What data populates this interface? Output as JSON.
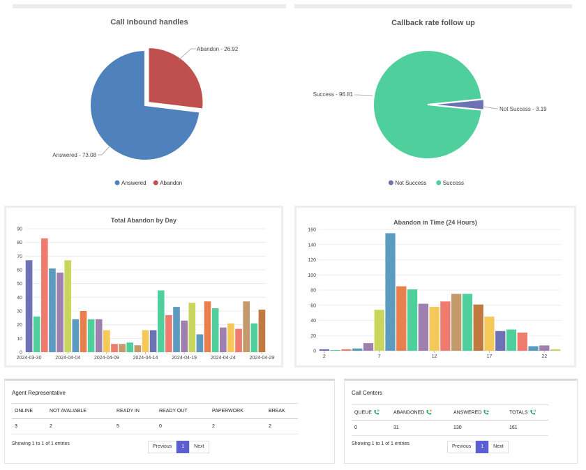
{
  "pie1": {
    "title": "Call inbound handles",
    "slices": [
      {
        "name": "Answered",
        "value": 73.08,
        "color": "#4f81bd",
        "label": "Answered - 73.08"
      },
      {
        "name": "Abandon",
        "value": 26.92,
        "color": "#c0504d",
        "label": "Abandon - 26.92"
      }
    ],
    "legend": [
      "Answered",
      "Abandon"
    ]
  },
  "pie2": {
    "title": "Callback rate follow up",
    "slices": [
      {
        "name": "Not Success",
        "value": 3.19,
        "color": "#6c72b3",
        "label": "Not Success - 3.19"
      },
      {
        "name": "Success",
        "value": 96.81,
        "color": "#4fcf9c",
        "label": "Success - 96.81"
      }
    ],
    "legend": [
      "Not Success",
      "Success"
    ]
  },
  "chart_data": [
    {
      "type": "pie",
      "title": "Call inbound handles",
      "categories": [
        "Answered",
        "Abandon"
      ],
      "values": [
        73.08,
        26.92
      ]
    },
    {
      "type": "pie",
      "title": "Callback rate follow up",
      "categories": [
        "Not Success",
        "Success"
      ],
      "values": [
        3.19,
        96.81
      ]
    },
    {
      "type": "bar",
      "title": "Total Abandon by Day",
      "x_tick_labels": [
        "2024-03-30",
        "2024-04-04",
        "2024-04-09",
        "2024-04-14",
        "2024-04-19",
        "2024-04-24",
        "2024-04-29"
      ],
      "ylim": [
        0,
        90
      ],
      "yticks": [
        0,
        10,
        20,
        30,
        40,
        50,
        60,
        70,
        80,
        90
      ],
      "values": [
        67,
        26,
        83,
        61,
        58,
        67,
        24,
        30,
        24,
        24,
        16,
        6,
        6,
        7,
        5,
        16,
        16,
        45,
        27,
        33,
        23,
        36,
        13,
        37,
        32,
        18,
        21,
        17,
        37,
        21,
        31
      ],
      "colors": [
        "#6c72b3",
        "#4fcf9c",
        "#ef7b6e",
        "#5b9bbf",
        "#9e7fae",
        "#c9d65e",
        "#5b9bbf",
        "#e87f4d",
        "#4fcf9c",
        "#9e7fae",
        "#f5c85a",
        "#ef7b6e",
        "#c49a6c",
        "#4fcf9c",
        "#c49a6c",
        "#f5c85a",
        "#6c72b3",
        "#4fcf9c",
        "#ef7b6e",
        "#5b9bbf",
        "#9e7fae",
        "#c9d65e",
        "#5b9bbf",
        "#e87f4d",
        "#4fcf9c",
        "#9e7fae",
        "#f5c85a",
        "#ef7b6e",
        "#c49a6c",
        "#4fcf9c",
        "#c07a3f"
      ]
    },
    {
      "type": "bar",
      "title": "Abandon in Time (24 Hours)",
      "x_tick_labels": [
        "2",
        "7",
        "12",
        "17",
        "22"
      ],
      "ylim": [
        0,
        160
      ],
      "yticks": [
        0,
        20,
        40,
        60,
        80,
        100,
        120,
        140,
        160
      ],
      "values": [
        2,
        1,
        2,
        3,
        10,
        54,
        155,
        85,
        81,
        62,
        58,
        65,
        75,
        75,
        61,
        45,
        26,
        28,
        24,
        6,
        7,
        2
      ],
      "colors": [
        "#6c72b3",
        "#4fcf9c",
        "#ef7b6e",
        "#5b9bbf",
        "#9e7fae",
        "#c9d65e",
        "#5b9bbf",
        "#e87f4d",
        "#4fcf9c",
        "#9e7fae",
        "#f5c85a",
        "#ef7b6e",
        "#c49a6c",
        "#4fcf9c",
        "#c07a3f",
        "#f5c85a",
        "#6c72b3",
        "#4fcf9c",
        "#ef7b6e",
        "#5b9bbf",
        "#9e7fae",
        "#c9d65e"
      ]
    }
  ],
  "agent": {
    "title": "Agent Representative",
    "headers": [
      "ONLINE",
      "NOT AVALIABLE",
      "READY IN",
      "READY OUT",
      "PAPERWORK",
      "BREAK"
    ],
    "row": [
      "3",
      "2",
      "5",
      "0",
      "2",
      "2"
    ],
    "info": "Showing 1 to 1 of 1 entries",
    "prev": "Previous",
    "page": "1",
    "next": "Next"
  },
  "callcenters": {
    "title": "Call Centers",
    "headers": [
      "QUEUE",
      "ABANDONED",
      "ANSWERED",
      "TOTALS"
    ],
    "header_icons": [
      "phone-queue-icon",
      "phone-abandoned-icon",
      "phone-answered-icon",
      "phone-totals-icon"
    ],
    "row": [
      "0",
      "31",
      "130",
      "161"
    ],
    "info": "Showing 1 to 1 of 1 entries",
    "prev": "Previous",
    "page": "1",
    "next": "Next"
  },
  "colors": {
    "accent": "#5b5fcf",
    "icon_green": "#2fa36b",
    "icon_orange": "#f0a030"
  }
}
